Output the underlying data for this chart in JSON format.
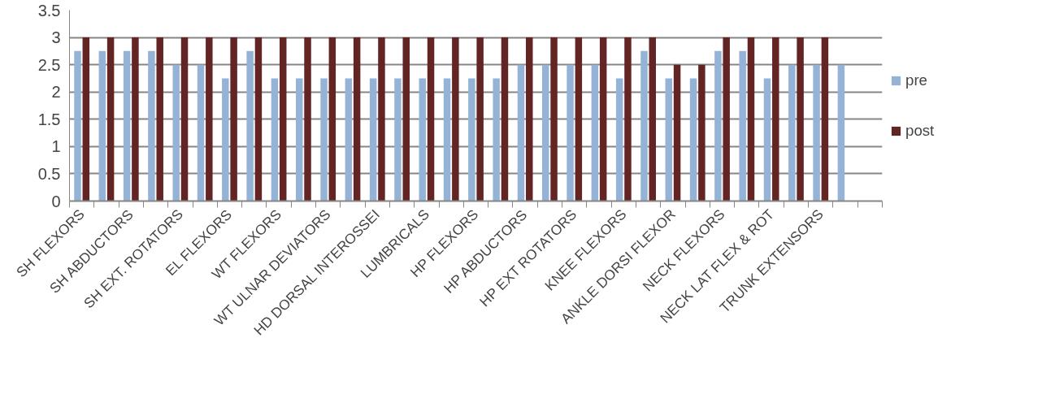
{
  "chart_data": {
    "type": "bar",
    "categories": [
      "SH FLEXORS",
      null,
      "SH ABDUCTORS",
      null,
      "SH EXT. ROTATORS",
      null,
      "EL FLEXORS",
      null,
      "WT FLEXORS",
      null,
      "WT ULNAR DEVIATORS",
      null,
      "HD DORSAL INTEROSSEI",
      null,
      "LUMBRICALS",
      null,
      "HP FLEXORS",
      null,
      "HP ABDUCTORS",
      null,
      "HP EXT ROTATORS",
      null,
      "KNEE FLEXORS",
      null,
      "ANKLE DORSI FLEXOR",
      null,
      "NECK FLEXORS",
      null,
      "NECK LAT FLEX & ROT",
      null,
      "TRUNK EXTENSORS",
      null,
      null
    ],
    "series": [
      {
        "name": "pre",
        "color": "#95b3d7",
        "values": [
          2.75,
          2.75,
          2.75,
          2.75,
          2.5,
          2.5,
          2.25,
          2.75,
          2.25,
          2.25,
          2.25,
          2.25,
          2.25,
          2.25,
          2.25,
          2.25,
          2.25,
          2.25,
          2.5,
          2.5,
          2.5,
          2.5,
          2.25,
          2.75,
          2.25,
          2.25,
          2.75,
          2.75,
          2.25,
          2.5,
          2.5,
          2.5,
          null
        ]
      },
      {
        "name": "post",
        "color": "#632523",
        "values": [
          3,
          3,
          3,
          3,
          3,
          3,
          3,
          3,
          3,
          3,
          3,
          3,
          3,
          3,
          3,
          3,
          3,
          3,
          3,
          3,
          3,
          3,
          3,
          3,
          2.5,
          2.5,
          3,
          3,
          3,
          3,
          3,
          null,
          null
        ]
      }
    ],
    "ylim": [
      0,
      3.5
    ],
    "yticks": [
      0,
      0.5,
      1,
      1.5,
      2,
      2.5,
      3,
      3.5
    ],
    "grid": "y",
    "legend": "right"
  }
}
